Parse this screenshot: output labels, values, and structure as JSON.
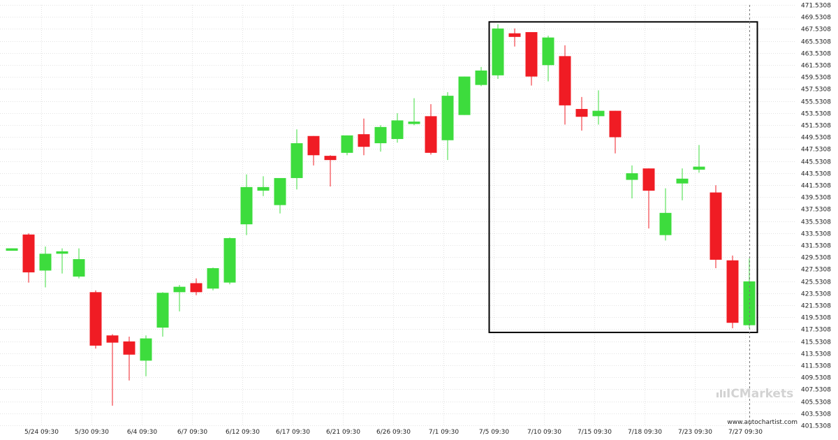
{
  "chart_data": {
    "type": "candlestick",
    "colors": {
      "up": "#3ddc3d",
      "down": "#f01c24",
      "grid": "#e2e2e2",
      "box": "#000000"
    },
    "y_range": [
      401.5308,
      471.5308
    ],
    "y_ticks": [
      401.5308,
      403.5308,
      405.5308,
      407.5308,
      409.5308,
      411.5308,
      413.5308,
      415.5308,
      417.5308,
      419.5308,
      421.5308,
      423.5308,
      425.5308,
      427.5308,
      429.5308,
      431.5308,
      433.5308,
      435.5308,
      437.5308,
      439.5308,
      441.5308,
      443.5308,
      445.5308,
      447.5308,
      449.5308,
      451.5308,
      453.5308,
      455.5308,
      457.5308,
      459.5308,
      461.5308,
      463.5308,
      465.5308,
      467.5308,
      469.5308,
      471.5308
    ],
    "y_tick_labels": [
      "401.5308",
      "403.5308",
      "405.5308",
      "407.5308",
      "409.5308",
      "411.5308",
      "413.5308",
      "415.5308",
      "417.5308",
      "419.5308",
      "421.5308",
      "423.5308",
      "425.5308",
      "427.5308",
      "429.5308",
      "431.5308",
      "433.5308",
      "435.5308",
      "437.5308",
      "439.5308",
      "441.5308",
      "443.5308",
      "445.5308",
      "447.5308",
      "449.5308",
      "451.5308",
      "453.5308",
      "455.5308",
      "457.5308",
      "459.5308",
      "461.5308",
      "463.5308",
      "465.5308",
      "467.5308",
      "469.5308",
      "471.5308"
    ],
    "x_labels": [
      {
        "label": "5/24 09:30",
        "at": 1.75
      },
      {
        "label": "5/30 09:30",
        "at": 4.75
      },
      {
        "label": "6/4 09:30",
        "at": 7.75
      },
      {
        "label": "6/7 09:30",
        "at": 10.75
      },
      {
        "label": "6/12 09:30",
        "at": 13.75
      },
      {
        "label": "6/17 09:30",
        "at": 16.75
      },
      {
        "label": "6/21 09:30",
        "at": 19.75
      },
      {
        "label": "6/26 09:30",
        "at": 22.75
      },
      {
        "label": "7/1 09:30",
        "at": 25.75
      },
      {
        "label": "7/5 09:30",
        "at": 28.75
      },
      {
        "label": "7/10 09:30",
        "at": 31.75
      },
      {
        "label": "7/15 09:30",
        "at": 34.75
      },
      {
        "label": "7/18 09:30",
        "at": 37.75
      },
      {
        "label": "7/23 09:30",
        "at": 40.75
      },
      {
        "label": "7/27 09:30",
        "at": 43.75
      }
    ],
    "candles": [
      {
        "o": 430.6,
        "h": 431.0,
        "l": 430.6,
        "c": 431.0
      },
      {
        "o": 433.3,
        "h": 433.5,
        "l": 425.3,
        "c": 427.0
      },
      {
        "o": 427.3,
        "h": 431.3,
        "l": 424.5,
        "c": 430.1
      },
      {
        "o": 430.1,
        "h": 431.0,
        "l": 426.8,
        "c": 430.5
      },
      {
        "o": 426.3,
        "h": 431.0,
        "l": 426.0,
        "c": 429.2
      },
      {
        "o": 423.7,
        "h": 424.0,
        "l": 414.3,
        "c": 414.8
      },
      {
        "o": 416.5,
        "h": 416.7,
        "l": 404.8,
        "c": 415.3
      },
      {
        "o": 415.5,
        "h": 416.3,
        "l": 409.0,
        "c": 413.3
      },
      {
        "o": 412.3,
        "h": 416.5,
        "l": 409.7,
        "c": 416.0
      },
      {
        "o": 417.8,
        "h": 423.7,
        "l": 416.3,
        "c": 423.6
      },
      {
        "o": 423.7,
        "h": 424.9,
        "l": 420.5,
        "c": 424.6
      },
      {
        "o": 425.2,
        "h": 426.0,
        "l": 423.2,
        "c": 423.7
      },
      {
        "o": 424.3,
        "h": 427.8,
        "l": 424.0,
        "c": 427.7
      },
      {
        "o": 425.3,
        "h": 432.8,
        "l": 425.0,
        "c": 432.7
      },
      {
        "o": 435.0,
        "h": 443.3,
        "l": 433.2,
        "c": 441.2
      },
      {
        "o": 440.6,
        "h": 443.0,
        "l": 439.7,
        "c": 441.2
      },
      {
        "o": 438.2,
        "h": 442.7,
        "l": 436.8,
        "c": 442.7
      },
      {
        "o": 442.7,
        "h": 450.8,
        "l": 440.8,
        "c": 448.5
      },
      {
        "o": 449.7,
        "h": 449.7,
        "l": 444.8,
        "c": 446.5
      },
      {
        "o": 446.4,
        "h": 446.5,
        "l": 441.3,
        "c": 445.7
      },
      {
        "o": 446.9,
        "h": 449.8,
        "l": 446.5,
        "c": 449.8
      },
      {
        "o": 450.0,
        "h": 452.6,
        "l": 446.5,
        "c": 447.9
      },
      {
        "o": 448.5,
        "h": 451.5,
        "l": 447.1,
        "c": 451.2
      },
      {
        "o": 449.2,
        "h": 453.5,
        "l": 448.6,
        "c": 452.3
      },
      {
        "o": 451.7,
        "h": 456.0,
        "l": 451.5,
        "c": 452.1
      },
      {
        "o": 453.0,
        "h": 455.0,
        "l": 446.6,
        "c": 446.9
      },
      {
        "o": 449.0,
        "h": 457.0,
        "l": 445.7,
        "c": 456.4
      },
      {
        "o": 453.2,
        "h": 459.6,
        "l": 453.2,
        "c": 459.6
      },
      {
        "o": 458.2,
        "h": 461.2,
        "l": 458.0,
        "c": 460.6
      },
      {
        "o": 459.8,
        "h": 468.3,
        "l": 459.2,
        "c": 467.6
      },
      {
        "o": 466.8,
        "h": 467.6,
        "l": 464.6,
        "c": 466.2
      },
      {
        "o": 467.0,
        "h": 467.0,
        "l": 458.1,
        "c": 459.6
      },
      {
        "o": 461.5,
        "h": 466.4,
        "l": 458.8,
        "c": 466.1
      },
      {
        "o": 463.0,
        "h": 464.8,
        "l": 451.6,
        "c": 454.8
      },
      {
        "o": 454.2,
        "h": 456.2,
        "l": 450.6,
        "c": 452.9
      },
      {
        "o": 453.0,
        "h": 457.3,
        "l": 451.6,
        "c": 453.9
      },
      {
        "o": 453.9,
        "h": 453.9,
        "l": 446.8,
        "c": 449.5
      },
      {
        "o": 442.4,
        "h": 444.8,
        "l": 439.3,
        "c": 443.5
      },
      {
        "o": 444.3,
        "h": 444.3,
        "l": 434.3,
        "c": 440.6
      },
      {
        "o": 433.2,
        "h": 441.0,
        "l": 432.3,
        "c": 436.9
      },
      {
        "o": 441.8,
        "h": 444.3,
        "l": 439.0,
        "c": 442.6
      },
      {
        "o": 444.1,
        "h": 448.2,
        "l": 443.6,
        "c": 444.6
      },
      {
        "o": 440.3,
        "h": 441.5,
        "l": 427.7,
        "c": 429.1
      },
      {
        "o": 429.0,
        "h": 429.8,
        "l": 417.7,
        "c": 418.6
      },
      {
        "o": 418.2,
        "h": 429.3,
        "l": 417.7,
        "c": 425.5
      }
    ],
    "pattern_box": {
      "from_index": 29,
      "to_index": 44,
      "top": 468.7,
      "bottom": 417.0
    },
    "current_line_index": 44
  },
  "watermark": {
    "brand": "ICMarkets",
    "site": "www.autochartist.com"
  }
}
